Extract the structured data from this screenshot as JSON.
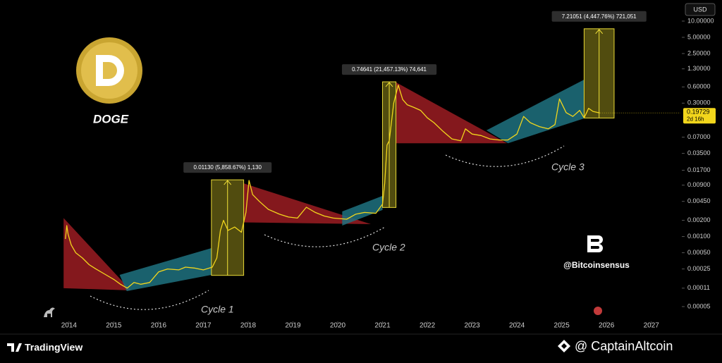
{
  "chart_data": {
    "type": "line",
    "title": "DOGE",
    "currency": "USD",
    "watermark": "@Bitcoinsensus",
    "platform": "TradingView",
    "source": "@ CaptainAltcoin",
    "log_scale": true,
    "grid": false,
    "xlim": [
      2012.46,
      2027.65
    ],
    "xticks": [
      2014,
      2015,
      2016,
      2017,
      2018,
      2019,
      2020,
      2021,
      2022,
      2023,
      2024,
      2025,
      2026,
      2027
    ],
    "ylim": [
      1.74e-05,
      13.5
    ],
    "yticks": [
      {
        "value": 10,
        "label": "10.00000"
      },
      {
        "value": 5,
        "label": "5.00000"
      },
      {
        "value": 2.5,
        "label": "2.50000"
      },
      {
        "value": 1.3,
        "label": "1.30000"
      },
      {
        "value": 0.6,
        "label": "0.60000"
      },
      {
        "value": 0.3,
        "label": "0.30000"
      },
      {
        "value": 0.07,
        "label": "0.07000"
      },
      {
        "value": 0.035,
        "label": "0.03500"
      },
      {
        "value": 0.017,
        "label": "0.01700"
      },
      {
        "value": 0.009,
        "label": "0.00900"
      },
      {
        "value": 0.0045,
        "label": "0.00450"
      },
      {
        "value": 0.002,
        "label": "0.00200"
      },
      {
        "value": 0.001,
        "label": "0.00100"
      },
      {
        "value": 0.0005,
        "label": "0.00050"
      },
      {
        "value": 0.00025,
        "label": "0.00025"
      },
      {
        "value": 0.00011,
        "label": "0.00011"
      },
      {
        "value": 5e-05,
        "label": "0.00005"
      }
    ],
    "x": [
      2013.92,
      2013.95,
      2013.98,
      2014.05,
      2014.15,
      2014.3,
      2014.45,
      2014.6,
      2014.8,
      2015.0,
      2015.15,
      2015.3,
      2015.45,
      2015.6,
      2015.8,
      2016.0,
      2016.2,
      2016.45,
      2016.6,
      2016.8,
      2017.0,
      2017.2,
      2017.3,
      2017.38,
      2017.45,
      2017.55,
      2017.7,
      2017.85,
      2017.95,
      2018.02,
      2018.1,
      2018.25,
      2018.45,
      2018.7,
      2018.9,
      2019.1,
      2019.3,
      2019.5,
      2019.7,
      2019.9,
      2020.2,
      2020.4,
      2020.6,
      2020.85,
      2021.0,
      2021.05,
      2021.1,
      2021.15,
      2021.25,
      2021.35,
      2021.45,
      2021.55,
      2021.7,
      2021.85,
      2022.0,
      2022.15,
      2022.35,
      2022.55,
      2022.75,
      2022.85,
      2023.0,
      2023.2,
      2023.4,
      2023.6,
      2023.8,
      2024.0,
      2024.15,
      2024.3,
      2024.5,
      2024.7,
      2024.85,
      2024.95,
      2025.1,
      2025.25,
      2025.4,
      2025.5,
      2025.6,
      2025.7,
      2025.85
    ],
    "series": [
      {
        "color": "#f2d61c",
        "values": [
          0.0009,
          0.0016,
          0.0011,
          0.0007,
          0.0005,
          0.0004,
          0.0003,
          0.00025,
          0.0002,
          0.00016,
          0.00013,
          0.00011,
          0.00014,
          0.00013,
          0.00014,
          0.00022,
          0.00025,
          0.00024,
          0.00027,
          0.00026,
          0.00024,
          0.00027,
          0.0004,
          0.0013,
          0.002,
          0.0013,
          0.0015,
          0.0012,
          0.0028,
          0.011,
          0.006,
          0.0045,
          0.0032,
          0.0026,
          0.0023,
          0.0022,
          0.0035,
          0.0028,
          0.0024,
          0.0022,
          0.0021,
          0.0026,
          0.0028,
          0.0027,
          0.004,
          0.01,
          0.05,
          0.06,
          0.3,
          0.65,
          0.35,
          0.28,
          0.25,
          0.22,
          0.16,
          0.13,
          0.09,
          0.065,
          0.06,
          0.1,
          0.08,
          0.075,
          0.065,
          0.062,
          0.062,
          0.08,
          0.17,
          0.13,
          0.11,
          0.1,
          0.12,
          0.36,
          0.2,
          0.17,
          0.22,
          0.16,
          0.24,
          0.21,
          0.19729
        ]
      }
    ],
    "price_tag": {
      "value": 0.19729,
      "countdown": "2d 16h",
      "color": "#f2d61c"
    },
    "zones": [
      {
        "color": "#9b1c22",
        "x": [
          2013.88,
          2013.88,
          2015.38
        ],
        "y": [
          0.0022,
          0.00011,
          0.0001
        ]
      },
      {
        "color": "#1f7280",
        "x": [
          2015.13,
          2017.18,
          2017.18,
          2015.29
        ],
        "y": [
          0.000194,
          0.00061,
          0.000194,
          9.7e-05
        ]
      },
      {
        "color": "#9b1c22",
        "x": [
          2017.9,
          2017.9,
          2020.74
        ],
        "y": [
          0.0097,
          0.00183,
          0.0017
        ]
      },
      {
        "color": "#1f7280",
        "x": [
          2020.1,
          2021.0,
          2021.0,
          2020.1
        ],
        "y": [
          0.00292,
          0.00568,
          0.00311,
          0.0016
        ]
      },
      {
        "color": "#9b1c22",
        "x": [
          2021.3,
          2021.3,
          2023.78
        ],
        "y": [
          0.73,
          0.054,
          0.054
        ]
      },
      {
        "color": "#1f7280",
        "x": [
          2023.32,
          2025.5,
          2025.5,
          2023.8
        ],
        "y": [
          0.094,
          0.82,
          0.156,
          0.054
        ]
      }
    ],
    "measures": [
      {
        "label": "0.01130 (5,858.67%) 1,130",
        "x": [
          2017.18,
          2017.9
        ],
        "y": [
          0.00019,
          0.0113
        ]
      },
      {
        "label": "0.74641 (21,457.13%) 74,641",
        "x": [
          2021.0,
          2021.3
        ],
        "y": [
          0.003463,
          0.74641
        ]
      },
      {
        "label": "7.21051 (4,447.76%) 721,051",
        "x": [
          2025.5,
          2026.17
        ],
        "y": [
          0.1586,
          7.21051
        ]
      }
    ],
    "cycles": [
      "Cycle 1",
      "Cycle 2",
      "Cycle 3"
    ]
  }
}
